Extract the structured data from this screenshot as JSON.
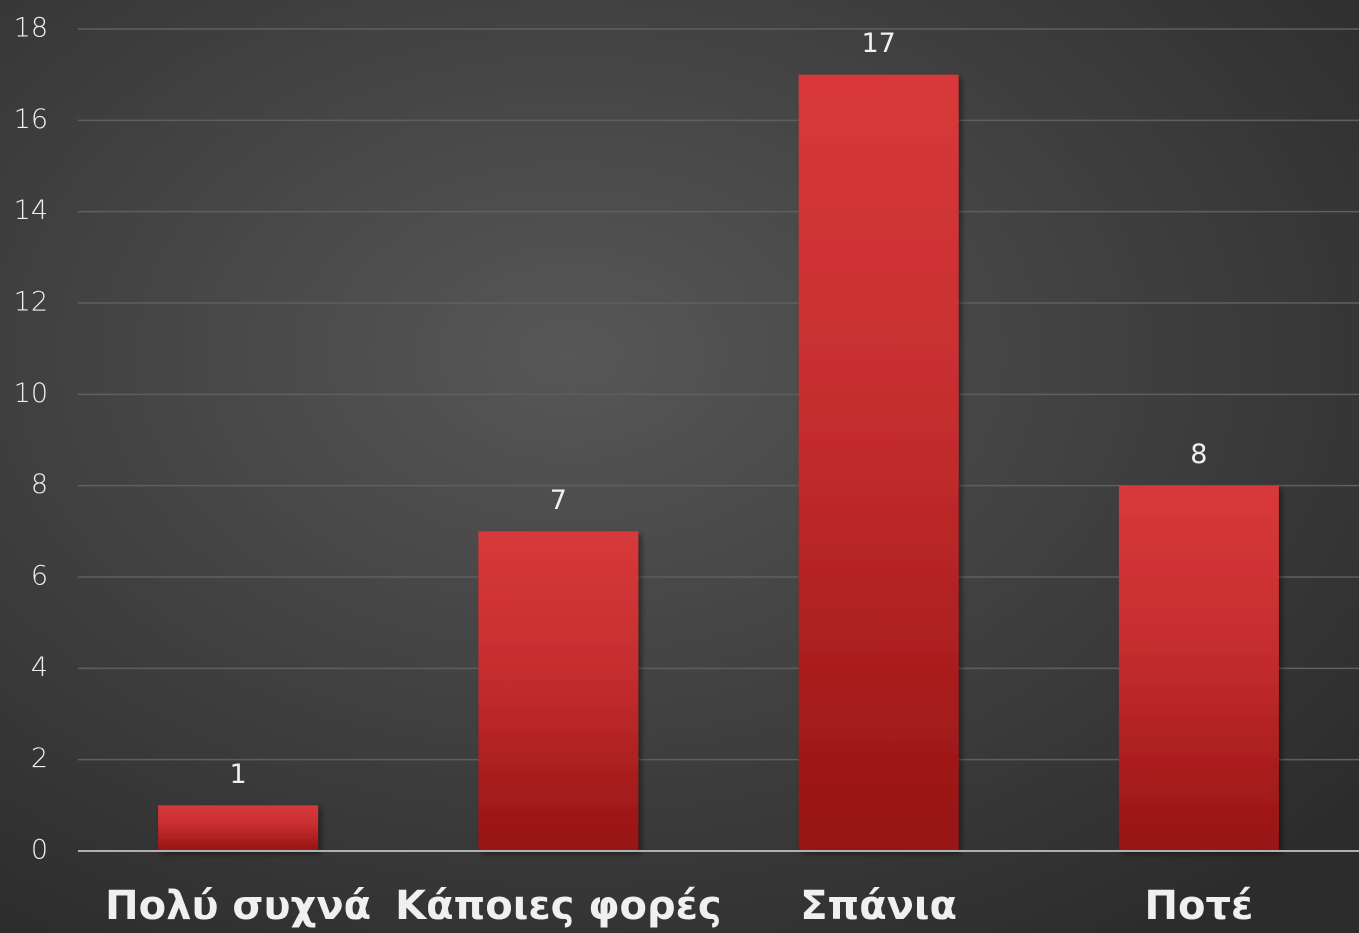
{
  "chart_data": {
    "type": "bar",
    "categories": [
      "Πολύ συχνά",
      "Κάποιες φορές",
      "Σπάνια",
      "Ποτέ"
    ],
    "values": [
      1,
      7,
      17,
      8
    ],
    "color": "#d43a3a",
    "ylim": [
      0,
      18
    ],
    "yticks": [
      0,
      2,
      4,
      6,
      8,
      10,
      12,
      14,
      16,
      18
    ],
    "grid": true
  }
}
